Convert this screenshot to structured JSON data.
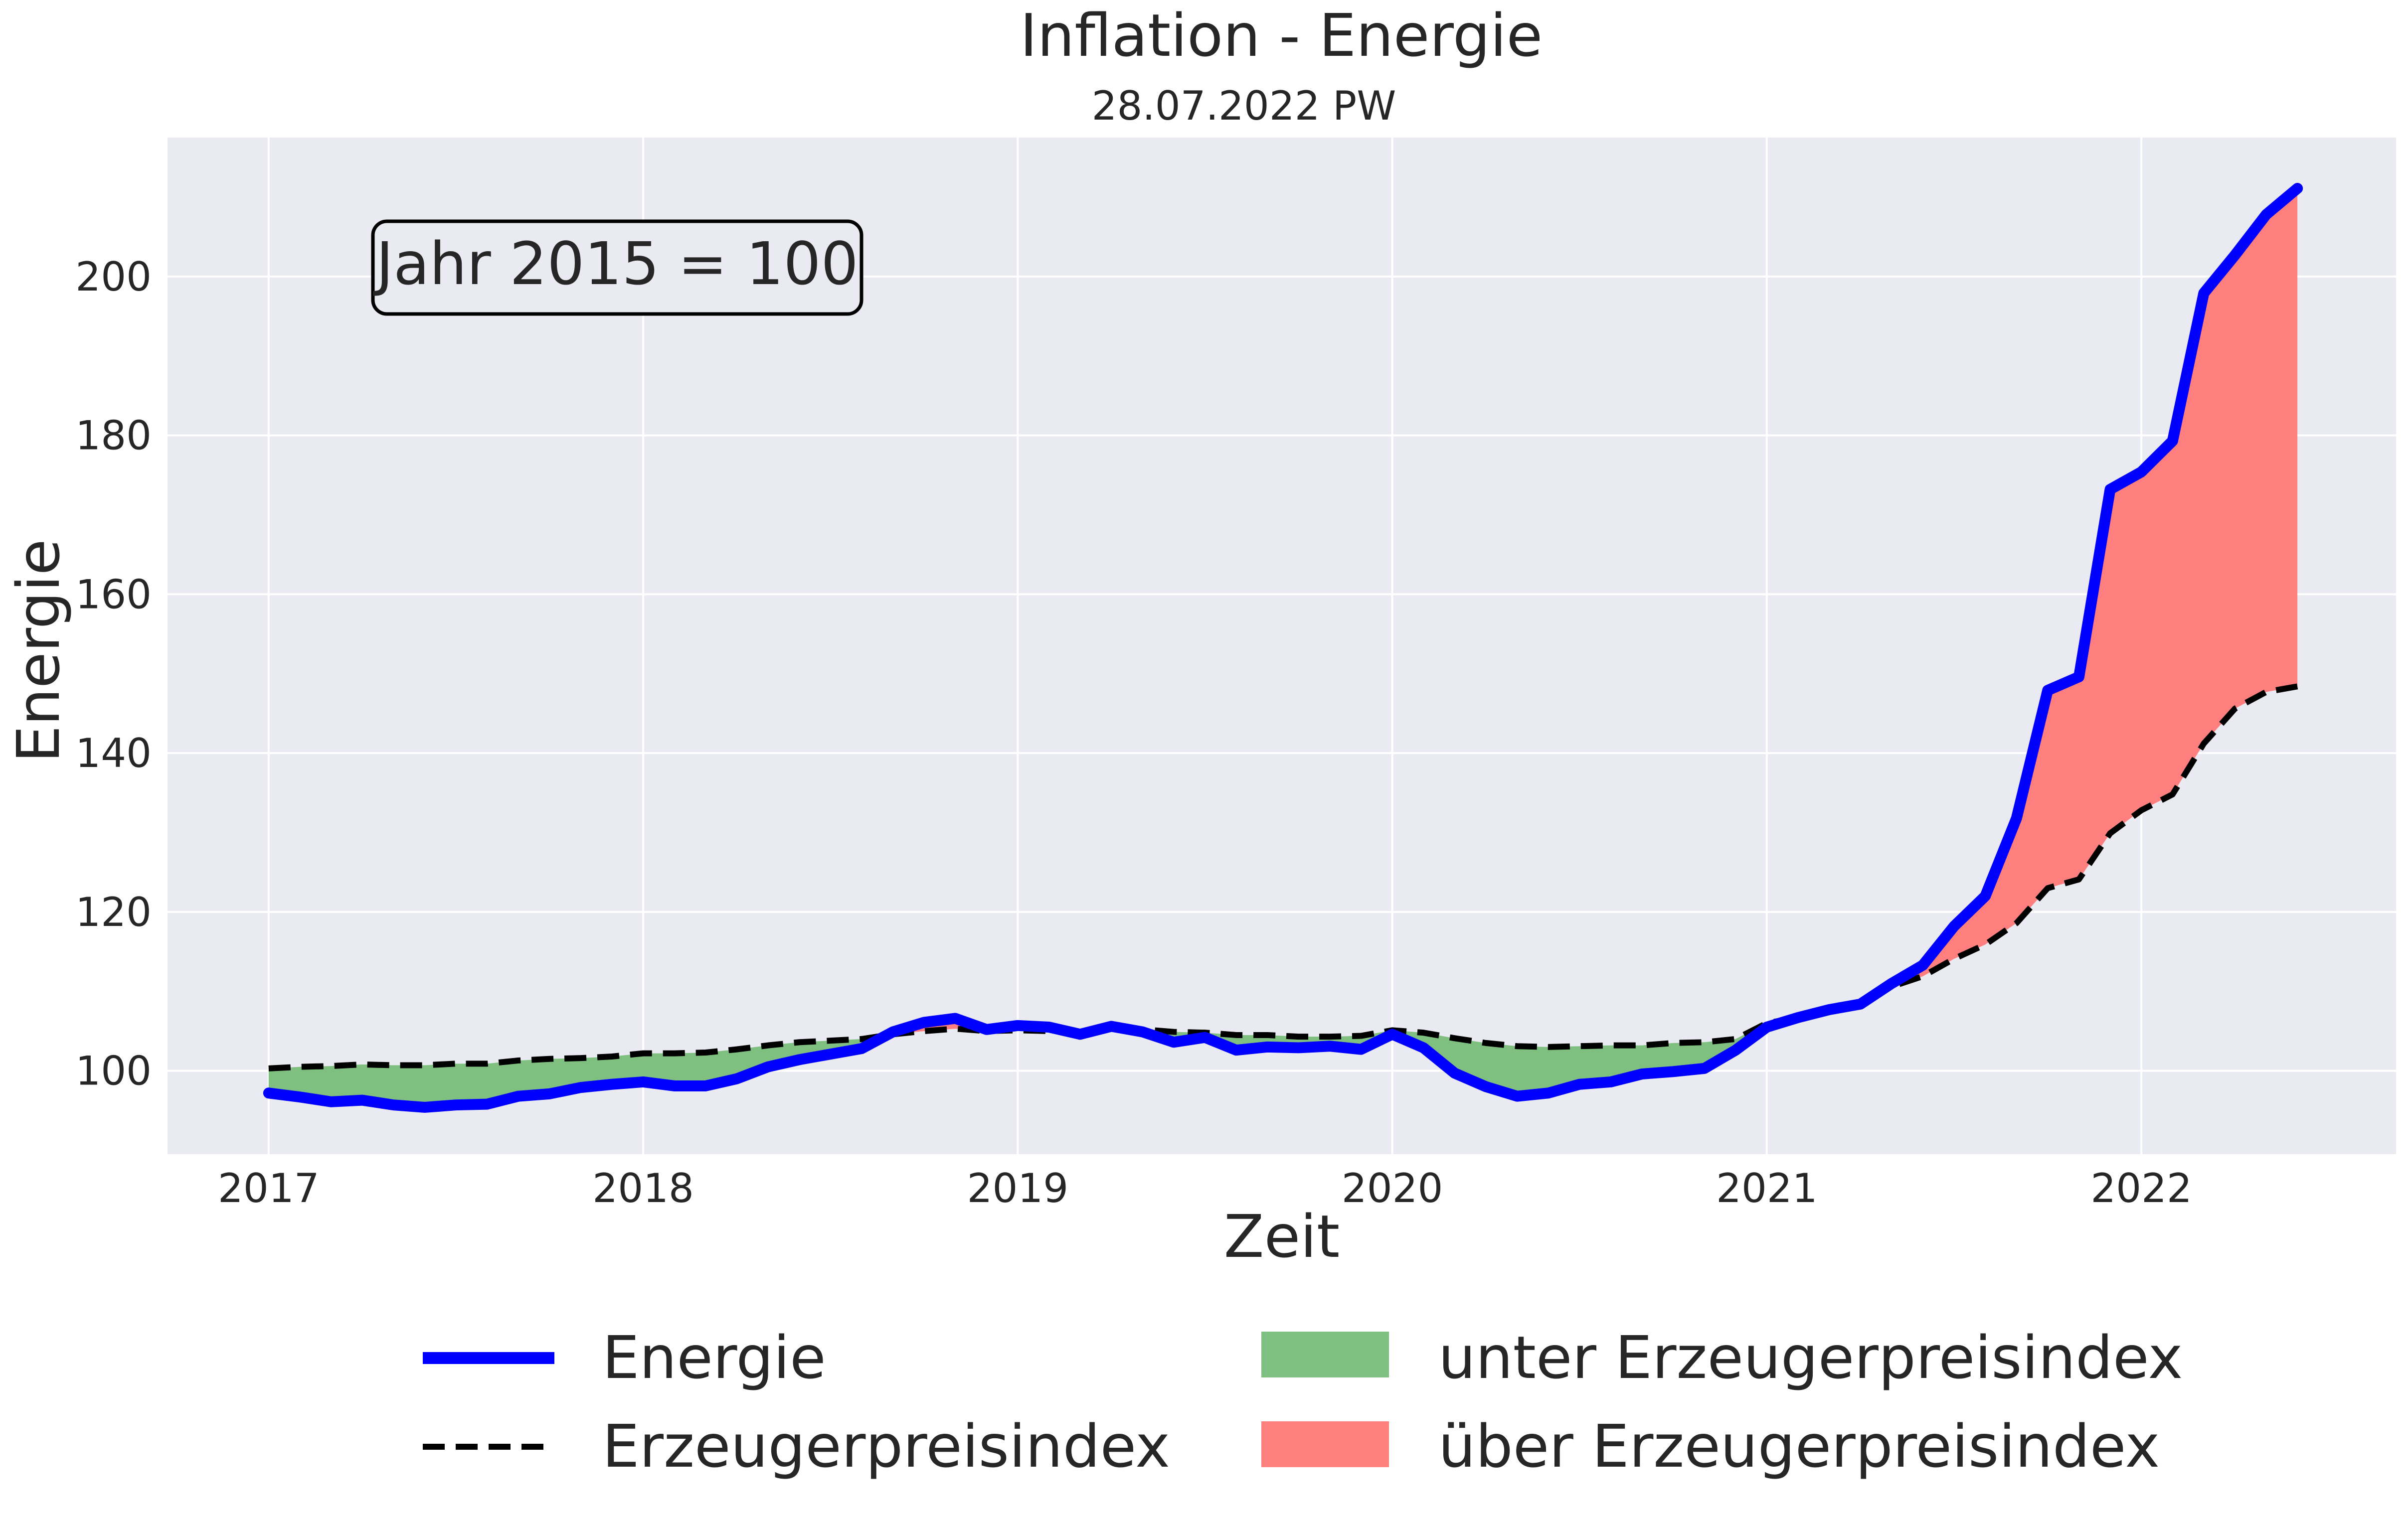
{
  "chart_data": {
    "type": "area",
    "title": "Inflation - Energie",
    "subtitle": "28.07.2022 PW",
    "xlabel": "Zeit",
    "ylabel": "Energie",
    "annotation": "Jahr 2015 = 100",
    "xlim": [
      2016.73,
      2022.68
    ],
    "ylim": [
      89.5,
      217.5
    ],
    "x_ticks": [
      "2017",
      "2018",
      "2019",
      "2020",
      "2021",
      "2022"
    ],
    "y_ticks": [
      "100",
      "120",
      "140",
      "160",
      "180",
      "200"
    ],
    "grid": true,
    "legend": {
      "placement": "bottom",
      "entries": [
        "Energie",
        "Erzeugerpreisindex",
        "unter Erzeugerpreisindex",
        "über Erzeugerpreisindex"
      ]
    },
    "colors": {
      "background": "#eaeaf2",
      "grid": "#ffffff",
      "energie": "#0000ff",
      "erzeugerpreisindex": "#000000",
      "unter": "#7fbf7f",
      "ueber": "#ff7f7f"
    },
    "x": [
      "2017-01",
      "2017-02",
      "2017-03",
      "2017-04",
      "2017-05",
      "2017-06",
      "2017-07",
      "2017-08",
      "2017-09",
      "2017-10",
      "2017-11",
      "2017-12",
      "2018-01",
      "2018-02",
      "2018-03",
      "2018-04",
      "2018-05",
      "2018-06",
      "2018-07",
      "2018-08",
      "2018-09",
      "2018-10",
      "2018-11",
      "2018-12",
      "2019-01",
      "2019-02",
      "2019-03",
      "2019-04",
      "2019-05",
      "2019-06",
      "2019-07",
      "2019-08",
      "2019-09",
      "2019-10",
      "2019-11",
      "2019-12",
      "2020-01",
      "2020-02",
      "2020-03",
      "2020-04",
      "2020-05",
      "2020-06",
      "2020-07",
      "2020-08",
      "2020-09",
      "2020-10",
      "2020-11",
      "2020-12",
      "2021-01",
      "2021-02",
      "2021-03",
      "2021-04",
      "2021-05",
      "2021-06",
      "2021-07",
      "2021-08",
      "2021-09",
      "2021-10",
      "2021-11",
      "2021-12",
      "2022-01",
      "2022-02",
      "2022-03",
      "2022-04",
      "2022-05",
      "2022-06"
    ],
    "series": [
      {
        "name": "Energie",
        "values": [
          97.2,
          96.7,
          96.1,
          96.3,
          95.7,
          95.4,
          95.7,
          95.8,
          96.8,
          97.1,
          97.9,
          98.3,
          98.6,
          98.1,
          98.1,
          99.0,
          100.5,
          101.4,
          102.1,
          102.8,
          104.9,
          106.1,
          106.6,
          105.2,
          105.7,
          105.5,
          104.6,
          105.6,
          104.9,
          103.6,
          104.2,
          102.6,
          103.0,
          102.9,
          103.1,
          102.7,
          104.6,
          102.9,
          99.7,
          98.0,
          96.8,
          97.2,
          98.3,
          98.6,
          99.6,
          99.9,
          100.3,
          102.6,
          105.5,
          106.7,
          107.7,
          108.4,
          111.0,
          113.3,
          118.2,
          122.0,
          131.8,
          147.9,
          149.6,
          173.2,
          175.4,
          179.3,
          197.9,
          202.7,
          207.8,
          211.1
        ]
      },
      {
        "name": "Erzeugerpreisindex",
        "values": [
          100.3,
          100.5,
          100.6,
          100.8,
          100.7,
          100.7,
          100.9,
          100.9,
          101.3,
          101.5,
          101.6,
          101.8,
          102.2,
          102.2,
          102.3,
          102.7,
          103.2,
          103.6,
          103.8,
          104.0,
          104.6,
          105.0,
          105.3,
          105.0,
          105.1,
          105.0,
          105.0,
          105.4,
          105.2,
          104.9,
          104.8,
          104.5,
          104.5,
          104.3,
          104.3,
          104.4,
          105.1,
          104.8,
          104.1,
          103.5,
          103.1,
          103.0,
          103.1,
          103.2,
          103.2,
          103.5,
          103.6,
          104.0,
          106.0,
          106.7,
          107.6,
          108.6,
          110.6,
          111.9,
          114.1,
          115.9,
          118.6,
          123.0,
          124.1,
          129.9,
          132.8,
          134.8,
          141.2,
          145.6,
          147.7,
          148.4
        ]
      }
    ]
  }
}
